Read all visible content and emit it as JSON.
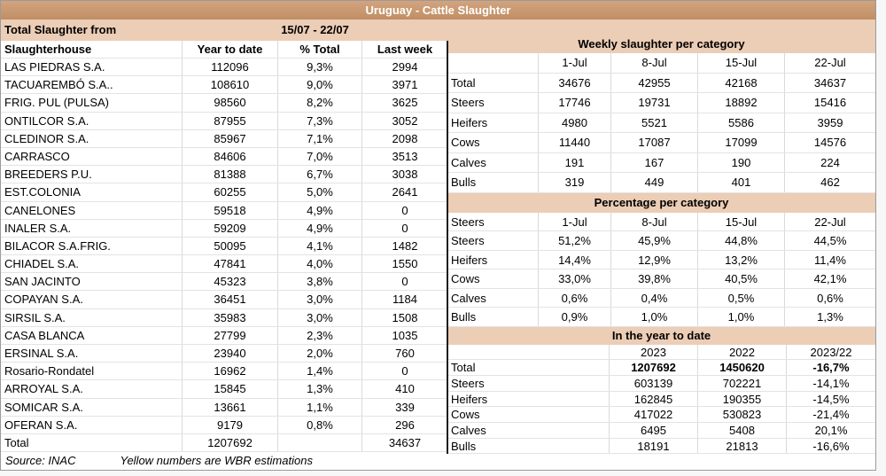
{
  "title": "Uruguay - Cattle Slaughter",
  "colors": {
    "title_bar": "#C9976E",
    "section_header": "#ECCDB6",
    "grid_line": "#DADADA",
    "divider": "#1C1C1C"
  },
  "left": {
    "period_label": "Total Slaughter from",
    "period_value": "15/07 - 22/07",
    "columns": [
      "Slaughterhouse",
      "Year to date",
      "% Total",
      "Last week"
    ],
    "rows": [
      [
        "LAS PIEDRAS S.A.",
        "112096",
        "9,3%",
        "2994"
      ],
      [
        "TACUAREMBÓ S.A..",
        "108610",
        "9,0%",
        "3971"
      ],
      [
        "FRIG. PUL (PULSA)",
        "98560",
        "8,2%",
        "3625"
      ],
      [
        "ONTILCOR S.A.",
        "87955",
        "7,3%",
        "3052"
      ],
      [
        "CLEDINOR S.A.",
        "85967",
        "7,1%",
        "2098"
      ],
      [
        "CARRASCO",
        "84606",
        "7,0%",
        "3513"
      ],
      [
        "BREEDERS P.U.",
        "81388",
        "6,7%",
        "3038"
      ],
      [
        "EST.COLONIA",
        "60255",
        "5,0%",
        "2641"
      ],
      [
        "CANELONES",
        "59518",
        "4,9%",
        "0"
      ],
      [
        "INALER S.A.",
        "59209",
        "4,9%",
        "0"
      ],
      [
        "BILACOR S.A.FRIG.",
        "50095",
        "4,1%",
        "1482"
      ],
      [
        "CHIADEL S.A.",
        "47841",
        "4,0%",
        "1550"
      ],
      [
        "SAN JACINTO",
        "45323",
        "3,8%",
        "0"
      ],
      [
        "COPAYAN S.A.",
        "36451",
        "3,0%",
        "1184"
      ],
      [
        "SIRSIL S.A.",
        "35983",
        "3,0%",
        "1508"
      ],
      [
        "CASA BLANCA",
        "27799",
        "2,3%",
        "1035"
      ],
      [
        "ERSINAL S.A.",
        "23940",
        "2,0%",
        "760"
      ],
      [
        "Rosario-Rondatel",
        "16962",
        "1,4%",
        "0"
      ],
      [
        "ARROYAL S.A.",
        "15845",
        "1,3%",
        "410"
      ],
      [
        "SOMICAR S.A.",
        "13661",
        "1,1%",
        "339"
      ],
      [
        "OFERAN S.A.",
        "9179",
        "0,8%",
        "296"
      ]
    ],
    "total_row": [
      "Total",
      "1207692",
      "",
      "34637"
    ],
    "source": "Source: INAC",
    "note": "Yellow numbers are WBR estimations"
  },
  "right": {
    "weekly": {
      "title": "Weekly slaughter per category",
      "columns": [
        "",
        "1-Jul",
        "8-Jul",
        "15-Jul",
        "22-Jul"
      ],
      "rows": [
        [
          "Total",
          "34676",
          "42955",
          "42168",
          "34637"
        ],
        [
          "Steers",
          "17746",
          "19731",
          "18892",
          "15416"
        ],
        [
          "Heifers",
          "4980",
          "5521",
          "5586",
          "3959"
        ],
        [
          "Cows",
          "11440",
          "17087",
          "17099",
          "14576"
        ],
        [
          "Calves",
          "191",
          "167",
          "190",
          "224"
        ],
        [
          "Bulls",
          "319",
          "449",
          "401",
          "462"
        ]
      ]
    },
    "percentage": {
      "title": "Percentage per category",
      "columns": [
        "Steers",
        "1-Jul",
        "8-Jul",
        "15-Jul",
        "22-Jul"
      ],
      "rows": [
        [
          "Steers",
          "51,2%",
          "45,9%",
          "44,8%",
          "44,5%"
        ],
        [
          "Heifers",
          "14,4%",
          "12,9%",
          "13,2%",
          "11,4%"
        ],
        [
          "Cows",
          "33,0%",
          "39,8%",
          "40,5%",
          "42,1%"
        ],
        [
          "Calves",
          "0,6%",
          "0,4%",
          "0,5%",
          "0,6%"
        ],
        [
          "Bulls",
          "0,9%",
          "1,0%",
          "1,0%",
          "1,3%"
        ]
      ]
    },
    "ytd": {
      "title": "In the year to date",
      "columns": [
        "",
        "2023",
        "2022",
        "2023/22"
      ],
      "rows": [
        [
          "Total",
          "1207692",
          "1450620",
          "-16,7%"
        ],
        [
          "Steers",
          "603139",
          "702221",
          "-14,1%"
        ],
        [
          "Heifers",
          "162845",
          "190355",
          "-14,5%"
        ],
        [
          "Cows",
          "417022",
          "530823",
          "-21,4%"
        ],
        [
          "Calves",
          "6495",
          "5408",
          "20,1%"
        ],
        [
          "Bulls",
          "18191",
          "21813",
          "-16,6%"
        ]
      ]
    }
  }
}
